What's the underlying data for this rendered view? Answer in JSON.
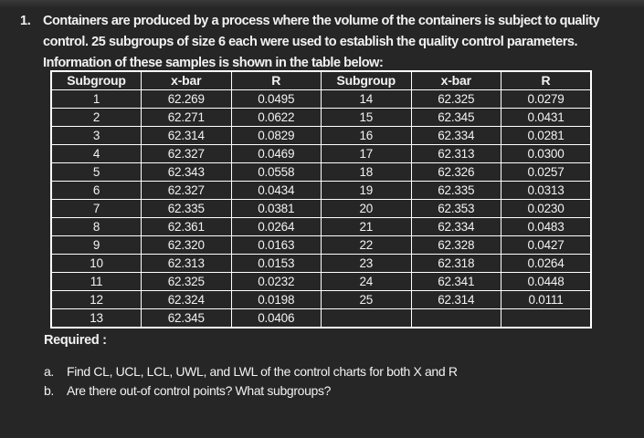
{
  "colors": {
    "background": "#262626",
    "text": "#f2f2f2",
    "table_border": "#ffffff"
  },
  "problem": {
    "number": "1.",
    "lines": [
      "Containers are produced by a process where the volume of the containers is subject to quality",
      "control.  25 subgroups of size 6 each were used to establish the quality control parameters.",
      "Information of these samples is shown in the table below:"
    ]
  },
  "table": {
    "headers": [
      "Subgroup",
      "x-bar",
      "R",
      "Subgroup",
      "x-bar",
      "R"
    ],
    "rows": [
      [
        "1",
        "62.269",
        "0.0495",
        "14",
        "62.325",
        "0.0279"
      ],
      [
        "2",
        "62.271",
        "0.0622",
        "15",
        "62.345",
        "0.0431"
      ],
      [
        "3",
        "62.314",
        "0.0829",
        "16",
        "62.334",
        "0.0281"
      ],
      [
        "4",
        "62.327",
        "0.0469",
        "17",
        "62.313",
        "0.0300"
      ],
      [
        "5",
        "62.343",
        "0.0558",
        "18",
        "62.326",
        "0.0257"
      ],
      [
        "6",
        "62.327",
        "0.0434",
        "19",
        "62.335",
        "0.0313"
      ],
      [
        "7",
        "62.335",
        "0.0381",
        "20",
        "62.353",
        "0.0230"
      ],
      [
        "8",
        "62.361",
        "0.0264",
        "21",
        "62.334",
        "0.0483"
      ],
      [
        "9",
        "62.320",
        "0.0163",
        "22",
        "62.328",
        "0.0427"
      ],
      [
        "10",
        "62.313",
        "0.0153",
        "23",
        "62.318",
        "0.0264"
      ],
      [
        "11",
        "62.325",
        "0.0232",
        "24",
        "62.341",
        "0.0448"
      ],
      [
        "12",
        "62.324",
        "0.0198",
        "25",
        "62.314",
        "0.0111"
      ],
      [
        "13",
        "62.345",
        "0.0406",
        "",
        "",
        ""
      ]
    ]
  },
  "required": {
    "label": "Required :",
    "items": [
      {
        "marker": "a.",
        "text": "Find CL, UCL, LCL, UWL, and LWL of the control charts for both X and R"
      },
      {
        "marker": "b.",
        "text": "Are there out-of control points? What subgroups?"
      }
    ]
  }
}
